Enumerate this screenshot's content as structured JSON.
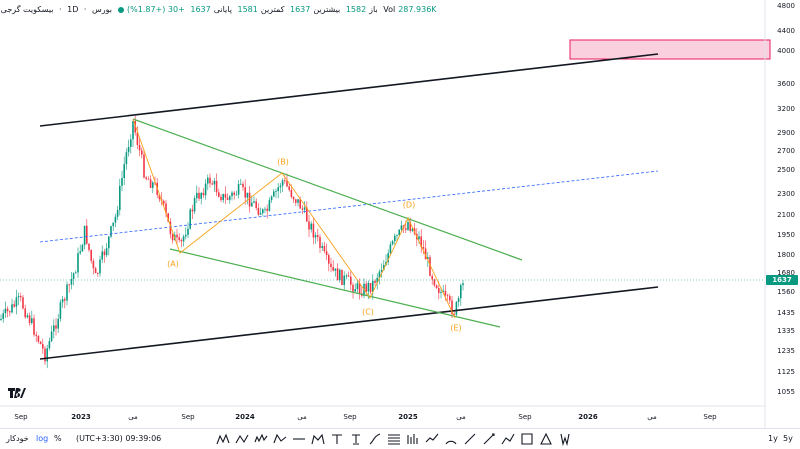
{
  "legend": {
    "symbol": "بیسکویت گرجی",
    "separator1": "·",
    "interval": "1D",
    "separator2": "·",
    "exchange": "بورس",
    "open_label": "باز",
    "open": "1582",
    "high_label": "بیشترین",
    "high": "1637",
    "low_label": "کمترین",
    "low": "1581",
    "close_label": "پایانی",
    "close": "1637",
    "change": "+30 (+1.87%)",
    "vol_label": "Vol",
    "vol": "287.936K"
  },
  "price_axis": {
    "ticks": [
      "4800",
      "4400",
      "4000",
      "3600",
      "3200",
      "2900",
      "2700",
      "2500",
      "2300",
      "2100",
      "1950",
      "1800",
      "1680",
      "1560",
      "1435",
      "1335",
      "1235",
      "1125",
      "1055"
    ],
    "current_price": "1637"
  },
  "time_axis": {
    "ticks": [
      "Sep",
      "2023",
      "می",
      "Sep",
      "2024",
      "می",
      "Sep",
      "2025",
      "می",
      "Sep",
      "2026",
      "می",
      "Sep"
    ]
  },
  "wave_labels": [
    "(A)",
    "(B)",
    "(C)",
    "(D)",
    "(E)"
  ],
  "bottom_bar": {
    "auto": "خودکار",
    "log": "log",
    "percent": "%",
    "timezone": "(UTC+3:30) 09:39:06",
    "range_1y": "1y",
    "range_5y": "5y"
  },
  "colors": {
    "candle_up": "#089981",
    "candle_down": "#f23645",
    "trend_channel": "#131722",
    "triangle": "#4caf50",
    "wave_path": "#f7a21b",
    "midline": "#2962ff",
    "zone_fill": "#f8bbd0",
    "zone_border": "#e91e63"
  },
  "tools": [
    "xabcd-pattern-icon",
    "abcd-pattern-icon",
    "elliott-wave-icon",
    "cypher-pattern-icon",
    "horizontal-ray-icon",
    "head-shoulders-icon",
    "text-tool-icon",
    "anchored-text-icon",
    "brush-icon",
    "fib-icon",
    "bars-pattern-icon",
    "forecast-icon",
    "arc-icon",
    "trend-line-icon",
    "ray-icon",
    "path-icon",
    "rectangle-icon",
    "triangle-pattern-icon",
    "settings-icon"
  ]
}
